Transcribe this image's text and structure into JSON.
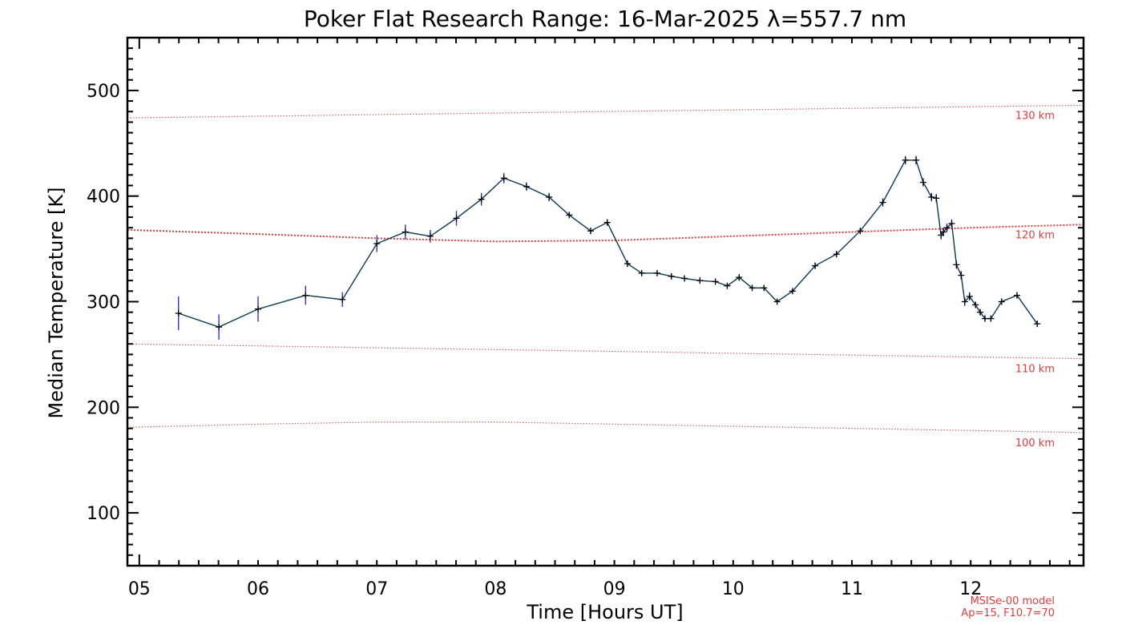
{
  "chart_data": {
    "type": "line",
    "title": "Poker Flat Research Range: 16-Mar-2025 λ=557.7 nm",
    "xlabel": "Time [Hours UT]",
    "ylabel": "Median Temperature [K]",
    "xlim": [
      4.9,
      12.95
    ],
    "ylim": [
      50,
      550
    ],
    "x_ticks": [
      "05",
      "06",
      "07",
      "08",
      "09",
      "10",
      "11",
      "12"
    ],
    "y_ticks": [
      "100",
      "200",
      "300",
      "400",
      "500"
    ],
    "grid": false,
    "colors": {
      "series": "#0b3a52",
      "error_bar": "#2323d8",
      "marker": "#000000",
      "model": "#e8393c"
    },
    "series": [
      {
        "x": [
          5.33,
          5.67,
          6.0,
          6.4,
          6.71,
          7.0,
          7.24,
          7.45,
          7.67,
          7.88,
          8.07,
          8.26,
          8.45,
          8.62,
          8.8,
          8.94,
          9.11,
          9.23,
          9.36,
          9.48,
          9.59,
          9.72,
          9.85,
          9.95,
          10.05,
          10.16,
          10.26,
          10.37,
          10.5,
          10.69,
          10.87,
          11.07,
          11.26,
          11.45,
          11.54,
          11.6,
          11.67,
          11.71,
          11.75,
          11.77,
          11.8,
          11.84,
          11.88,
          11.92,
          11.95,
          11.99,
          12.04,
          12.08,
          12.12,
          12.17,
          12.26,
          12.39,
          12.56
        ],
        "y": [
          289,
          276,
          293,
          306,
          302,
          355,
          366,
          362,
          379,
          397,
          417,
          409,
          399,
          382,
          367,
          375,
          336,
          327,
          327,
          324,
          322,
          320,
          319,
          315,
          323,
          313,
          313,
          300,
          310,
          334,
          345,
          367,
          394,
          434,
          434,
          413,
          399,
          398,
          363,
          366,
          370,
          374,
          335,
          325,
          300,
          305,
          297,
          290,
          284,
          284,
          300,
          306,
          279
        ],
        "err": [
          16,
          12,
          12,
          9,
          7,
          8,
          7,
          6,
          7,
          6,
          5,
          4,
          4,
          3,
          3,
          3,
          3,
          2,
          2,
          2,
          2,
          2,
          2,
          2,
          3,
          2,
          2,
          2,
          2,
          3,
          3,
          3,
          4,
          4,
          4,
          4,
          4,
          4,
          4,
          4,
          4,
          4,
          4,
          4,
          4,
          4,
          3,
          3,
          3,
          3,
          3,
          3,
          3
        ]
      }
    ],
    "model_lines": [
      {
        "label": "130 km",
        "x": [
          4.9,
          12.95
        ],
        "y": [
          474,
          486
        ]
      },
      {
        "label": "120 km",
        "x": [
          4.9,
          6.0,
          7.0,
          8.0,
          9.0,
          10.0,
          11.0,
          12.0,
          12.95
        ],
        "y": [
          368,
          364,
          360,
          357,
          358,
          362,
          366,
          370,
          373
        ]
      },
      {
        "label": "110 km",
        "x": [
          4.9,
          12.95
        ],
        "y": [
          260,
          246
        ]
      },
      {
        "label": "100 km",
        "x": [
          4.9,
          6.0,
          7.0,
          8.0,
          9.0,
          10.0,
          11.0,
          12.0,
          12.95
        ],
        "y": [
          181,
          184,
          186,
          186,
          184,
          182,
          180,
          178,
          176
        ]
      }
    ],
    "notes": [
      "MSISe-00 model",
      "Ap=15, F10.7=70"
    ]
  }
}
